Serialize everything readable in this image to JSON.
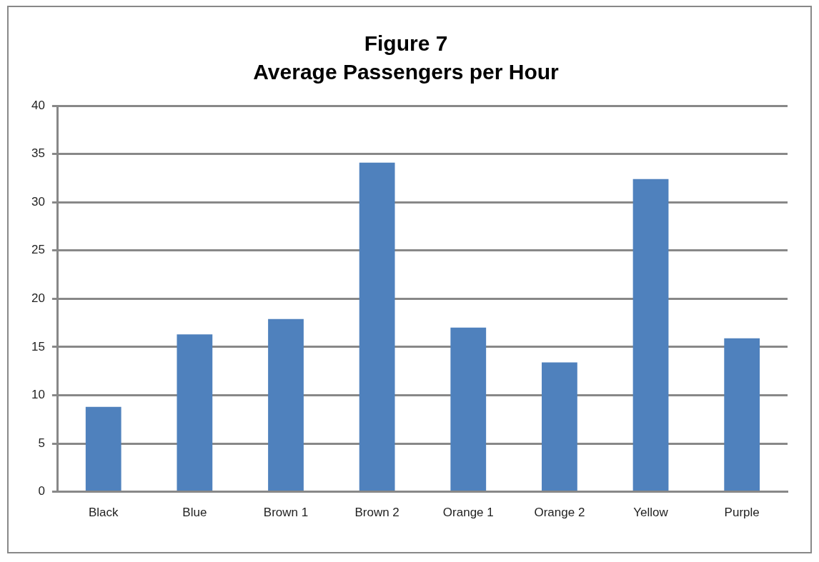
{
  "chart_data": {
    "type": "bar",
    "title": "Figure 7",
    "subtitle": "Average Passengers per Hour",
    "categories": [
      "Black",
      "Blue",
      "Brown 1",
      "Brown 2",
      "Orange 1",
      "Orange 2",
      "Yellow",
      "Purple"
    ],
    "values": [
      8.8,
      16.3,
      17.9,
      34.1,
      17.0,
      13.4,
      32.4,
      15.9
    ],
    "color": "#4f81bd",
    "ylim": [
      0,
      40
    ],
    "yticks": [
      0,
      5,
      10,
      15,
      20,
      25,
      30,
      35,
      40
    ],
    "grid": "y",
    "legend": false
  }
}
